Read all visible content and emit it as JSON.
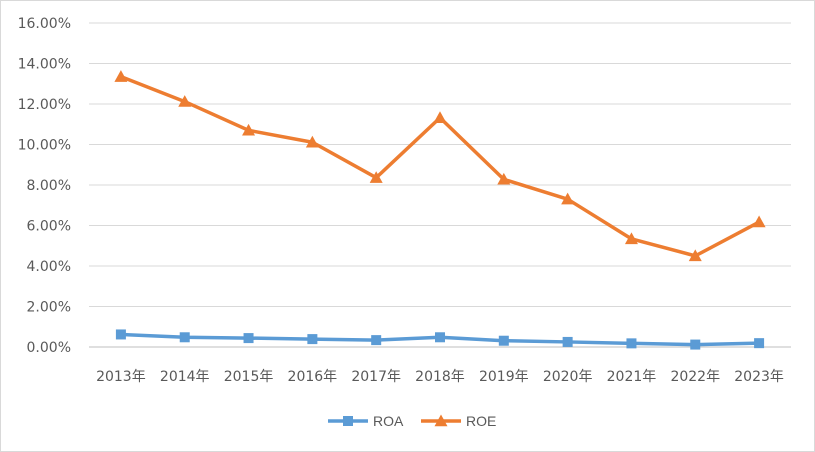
{
  "chart_data": {
    "type": "line",
    "title": "",
    "xlabel": "",
    "ylabel": "",
    "categories": [
      "2013年",
      "2014年",
      "2015年",
      "2016年",
      "2017年",
      "2018年",
      "2019年",
      "2020年",
      "2021年",
      "2022年",
      "2023年"
    ],
    "ylim": [
      0,
      16
    ],
    "yticks": [
      "0.00%",
      "2.00%",
      "4.00%",
      "6.00%",
      "8.00%",
      "10.00%",
      "12.00%",
      "14.00%",
      "16.00%"
    ],
    "grid": true,
    "legend_position": "bottom",
    "series": [
      {
        "name": "ROA",
        "color": "#5B9BD5",
        "marker": "square",
        "values": [
          0.62,
          0.48,
          0.44,
          0.39,
          0.34,
          0.48,
          0.31,
          0.25,
          0.18,
          0.12,
          0.19
        ]
      },
      {
        "name": "ROE",
        "color": "#ED7D31",
        "marker": "triangle",
        "values": [
          13.35,
          12.12,
          10.7,
          10.11,
          8.36,
          11.32,
          8.28,
          7.3,
          5.34,
          4.5,
          6.17
        ]
      }
    ]
  }
}
